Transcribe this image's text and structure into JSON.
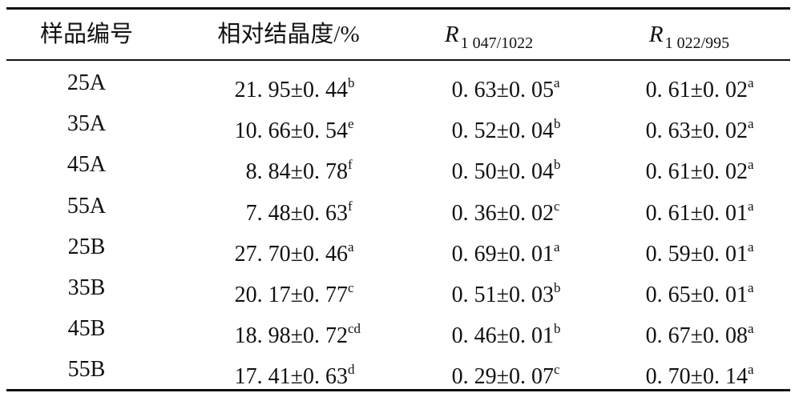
{
  "table": {
    "header": [
      "样品编号",
      "相对结晶度/%",
      {
        "main": "R",
        "sub": "1 047/1022"
      },
      {
        "main": "R",
        "sub": "1 022/995"
      }
    ],
    "rows": [
      [
        "25A",
        {
          "text": "21. 95±0. 44",
          "sup": "b"
        },
        {
          "text": "0. 63±0. 05",
          "sup": "a"
        },
        {
          "text": "0. 61±0. 02",
          "sup": "a"
        }
      ],
      [
        "35A",
        {
          "text": "10. 66±0. 54",
          "sup": "e"
        },
        {
          "text": "0. 52±0. 04",
          "sup": "b"
        },
        {
          "text": "0. 63±0. 02",
          "sup": "a"
        }
      ],
      [
        "45A",
        {
          "text": "8. 84±0. 78",
          "sup": "f"
        },
        {
          "text": "0. 50±0. 04",
          "sup": "b"
        },
        {
          "text": "0. 61±0. 02",
          "sup": "a"
        }
      ],
      [
        "55A",
        {
          "text": "7. 48±0. 63",
          "sup": "f"
        },
        {
          "text": "0. 36±0. 02",
          "sup": "c"
        },
        {
          "text": "0. 61±0. 01",
          "sup": "a"
        }
      ],
      [
        "25B",
        {
          "text": "27. 70±0. 46",
          "sup": "a"
        },
        {
          "text": "0. 69±0. 01",
          "sup": "a"
        },
        {
          "text": "0. 59±0. 01",
          "sup": "a"
        }
      ],
      [
        "35B",
        {
          "text": "20. 17±0. 77",
          "sup": "c"
        },
        {
          "text": "0. 51±0. 03",
          "sup": "b"
        },
        {
          "text": "0. 65±0. 01",
          "sup": "a"
        }
      ],
      [
        "45B",
        {
          "text": "18. 98±0. 72",
          "sup": "cd"
        },
        {
          "text": "0. 46±0. 01",
          "sup": "b"
        },
        {
          "text": "0. 67±0. 08",
          "sup": "a"
        }
      ],
      [
        "55B",
        {
          "text": "17. 41±0. 63",
          "sup": "d"
        },
        {
          "text": "0. 29±0. 07",
          "sup": "c"
        },
        {
          "text": "0. 70±0. 14",
          "sup": "a"
        }
      ]
    ]
  }
}
